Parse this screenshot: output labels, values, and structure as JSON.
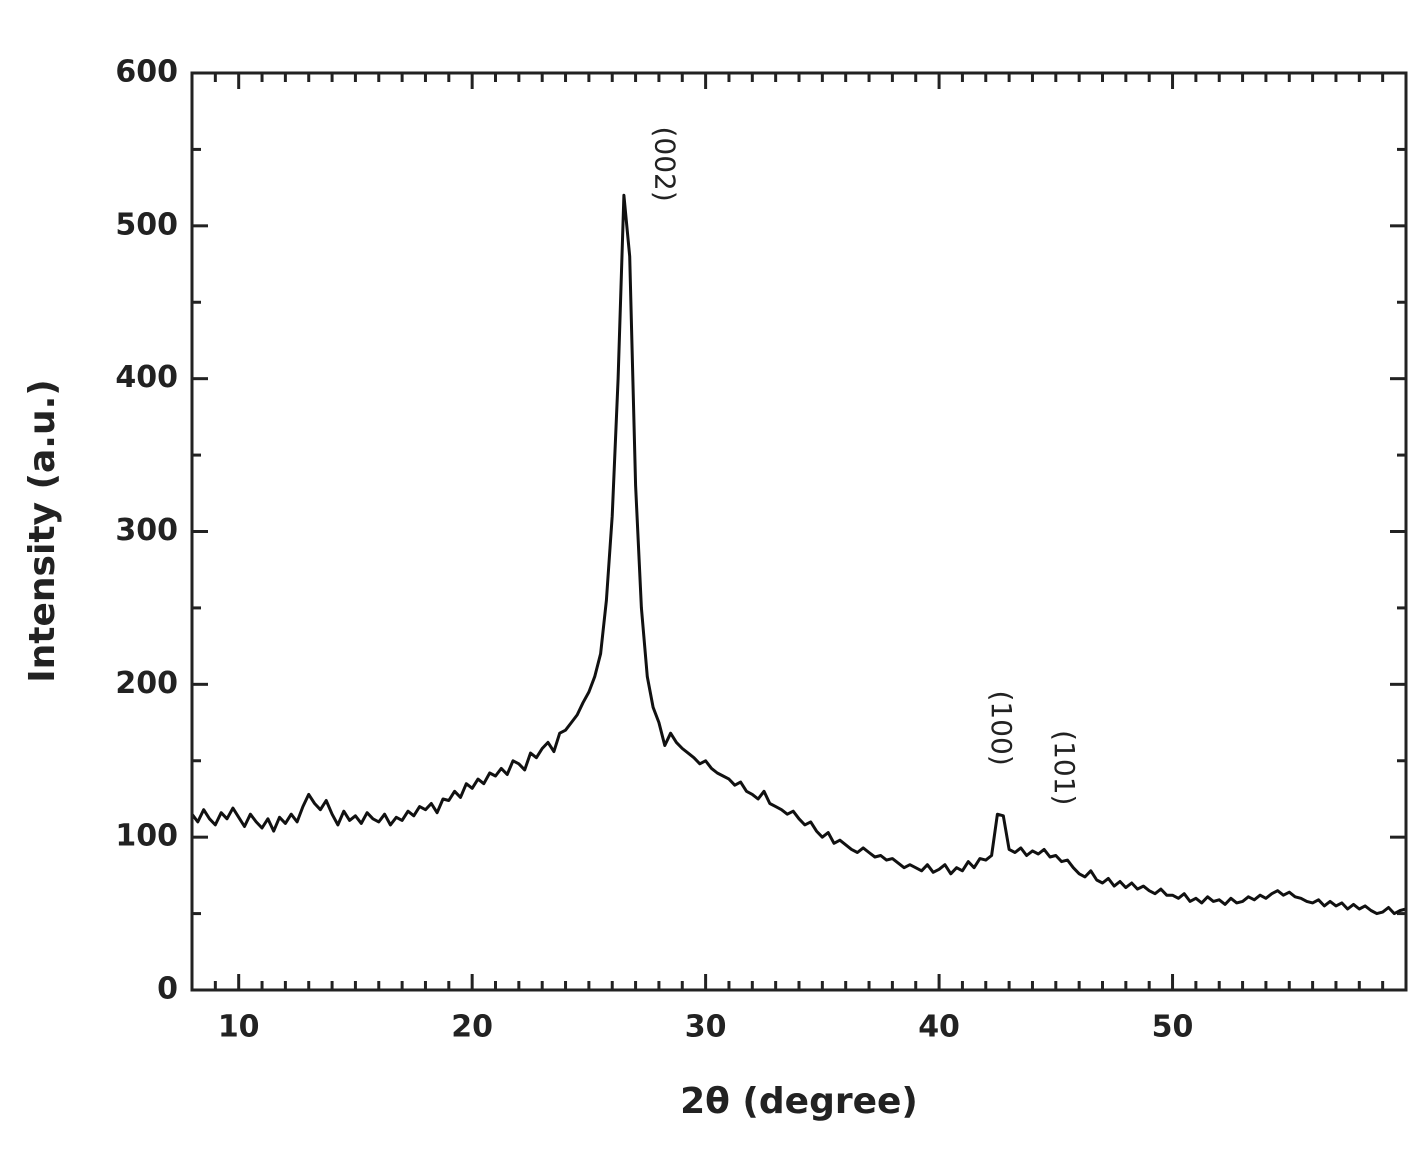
{
  "chart_data": {
    "type": "line",
    "xlabel": "2θ (degree)",
    "ylabel": "Intensity (a.u.)",
    "xlim": [
      8,
      60
    ],
    "ylim": [
      0,
      600
    ],
    "xticks": [
      10,
      20,
      30,
      40,
      50
    ],
    "yticks": [
      0,
      100,
      200,
      300,
      400,
      500,
      600
    ],
    "xminorticks": [
      8,
      9,
      11,
      12,
      13,
      14,
      15,
      16,
      17,
      18,
      19,
      21,
      22,
      23,
      24,
      25,
      26,
      27,
      28,
      29,
      31,
      32,
      33,
      34,
      35,
      36,
      37,
      38,
      39,
      41,
      42,
      43,
      44,
      45,
      46,
      47,
      48,
      49,
      51,
      52,
      53,
      54,
      55,
      56,
      57,
      58,
      59
    ],
    "yminorticks": [
      50,
      150,
      250,
      350,
      450,
      550
    ],
    "color": "#111111",
    "annotations": [
      {
        "text": "(002)",
        "x": 28.2,
        "y": 565
      },
      {
        "text": "(100)",
        "x": 42.6,
        "y": 196
      },
      {
        "text": "(101)",
        "x": 45.3,
        "y": 170
      }
    ],
    "x": [
      8,
      8.25,
      8.5,
      8.75,
      9,
      9.25,
      9.5,
      9.75,
      10,
      10.25,
      10.5,
      10.75,
      11,
      11.25,
      11.5,
      11.75,
      12,
      12.25,
      12.5,
      12.75,
      13,
      13.25,
      13.5,
      13.75,
      14,
      14.25,
      14.5,
      14.75,
      15,
      15.25,
      15.5,
      15.75,
      16,
      16.25,
      16.5,
      16.75,
      17,
      17.25,
      17.5,
      17.75,
      18,
      18.25,
      18.5,
      18.75,
      19,
      19.25,
      19.5,
      19.75,
      20,
      20.25,
      20.5,
      20.75,
      21,
      21.25,
      21.5,
      21.75,
      22,
      22.25,
      22.5,
      22.75,
      23,
      23.25,
      23.5,
      23.75,
      24,
      24.25,
      24.5,
      24.75,
      25,
      25.25,
      25.5,
      25.75,
      26,
      26.25,
      26.5,
      26.75,
      27,
      27.25,
      27.5,
      27.75,
      28,
      28.25,
      28.5,
      28.75,
      29,
      29.25,
      29.5,
      29.75,
      30,
      30.25,
      30.5,
      30.75,
      31,
      31.25,
      31.5,
      31.75,
      32,
      32.25,
      32.5,
      32.75,
      33,
      33.25,
      33.5,
      33.75,
      34,
      34.25,
      34.5,
      34.75,
      35,
      35.25,
      35.5,
      35.75,
      36,
      36.25,
      36.5,
      36.75,
      37,
      37.25,
      37.5,
      37.75,
      38,
      38.25,
      38.5,
      38.75,
      39,
      39.25,
      39.5,
      39.75,
      40,
      40.25,
      40.5,
      40.75,
      41,
      41.25,
      41.5,
      41.75,
      42,
      42.25,
      42.5,
      42.75,
      43,
      43.25,
      43.5,
      43.75,
      44,
      44.25,
      44.5,
      44.75,
      45,
      45.25,
      45.5,
      45.75,
      46,
      46.25,
      46.5,
      46.75,
      47,
      47.25,
      47.5,
      47.75,
      48,
      48.25,
      48.5,
      48.75,
      49,
      49.25,
      49.5,
      49.75,
      50,
      50.25,
      50.5,
      50.75,
      51,
      51.25,
      51.5,
      51.75,
      52,
      52.25,
      52.5,
      52.75,
      53,
      53.25,
      53.5,
      53.75,
      54,
      54.25,
      54.5,
      54.75,
      55,
      55.25,
      55.5,
      55.75,
      56,
      56.25,
      56.5,
      56.75,
      57,
      57.25,
      57.5,
      57.75,
      58,
      58.25,
      58.5,
      58.75,
      59,
      59.25,
      59.5,
      59.75,
      60
    ],
    "values": [
      115,
      110,
      118,
      112,
      108,
      116,
      112,
      119,
      113,
      107,
      115,
      110,
      106,
      112,
      104,
      113,
      109,
      115,
      110,
      120,
      128,
      122,
      118,
      124,
      115,
      108,
      117,
      111,
      114,
      109,
      116,
      112,
      110,
      115,
      108,
      113,
      111,
      117,
      114,
      120,
      118,
      122,
      116,
      125,
      124,
      130,
      126,
      135,
      132,
      138,
      135,
      142,
      140,
      145,
      141,
      150,
      148,
      144,
      155,
      152,
      158,
      162,
      156,
      168,
      170,
      175,
      180,
      188,
      195,
      205,
      220,
      255,
      310,
      400,
      520,
      480,
      330,
      250,
      205,
      185,
      175,
      160,
      168,
      162,
      158,
      155,
      152,
      148,
      150,
      145,
      142,
      140,
      138,
      134,
      136,
      130,
      128,
      125,
      130,
      122,
      120,
      118,
      115,
      117,
      112,
      108,
      110,
      104,
      100,
      103,
      96,
      98,
      95,
      92,
      90,
      93,
      90,
      87,
      88,
      85,
      86,
      83,
      80,
      82,
      80,
      78,
      82,
      77,
      79,
      82,
      76,
      80,
      78,
      84,
      80,
      86,
      85,
      88,
      115,
      114,
      92,
      90,
      93,
      88,
      91,
      89,
      92,
      87,
      88,
      84,
      85,
      80,
      76,
      74,
      78,
      72,
      70,
      73,
      68,
      71,
      67,
      70,
      66,
      68,
      65,
      63,
      66,
      62,
      62,
      60,
      63,
      58,
      60,
      57,
      61,
      58,
      59,
      56,
      60,
      57,
      58,
      61,
      59,
      62,
      60,
      63,
      65,
      62,
      64,
      61,
      60,
      58,
      57,
      59,
      55,
      58,
      55,
      57,
      53,
      56,
      53,
      55,
      52,
      50,
      51,
      54,
      50,
      52,
      53
    ]
  }
}
